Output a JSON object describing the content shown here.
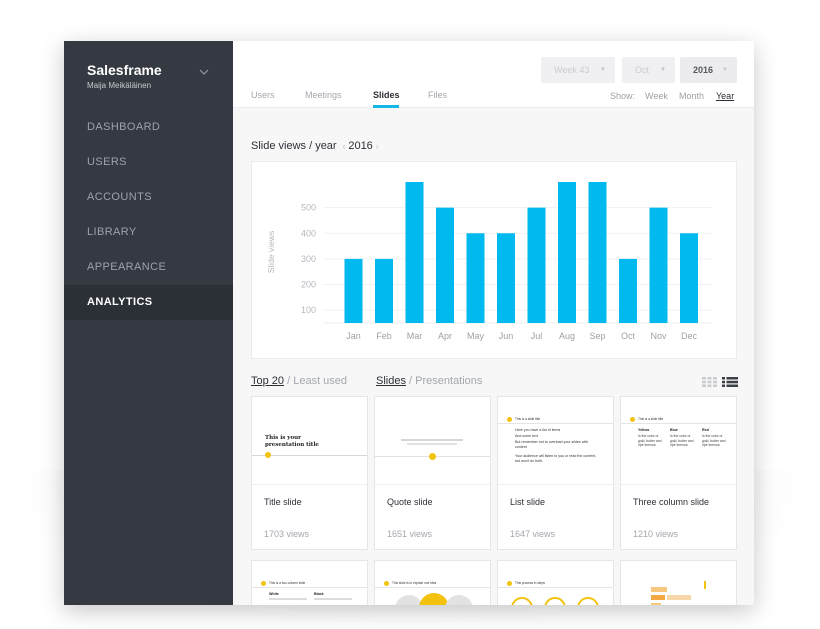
{
  "app": {
    "brand": "Salesframe",
    "user": "Maija Meikäläinen"
  },
  "sidebar": {
    "items": [
      {
        "label": "DASHBOARD",
        "active": false
      },
      {
        "label": "USERS",
        "active": false
      },
      {
        "label": "ACCOUNTS",
        "active": false
      },
      {
        "label": "LIBRARY",
        "active": false
      },
      {
        "label": "APPEARANCE",
        "active": false
      },
      {
        "label": "ANALYTICS",
        "active": true
      }
    ]
  },
  "filters": {
    "week": "Week 43",
    "month": "Oct",
    "year": "2016"
  },
  "tabs": [
    {
      "label": "Users",
      "active": false
    },
    {
      "label": "Meetings",
      "active": false
    },
    {
      "label": "Slides",
      "active": true
    },
    {
      "label": "Files",
      "active": false
    }
  ],
  "show": {
    "label": "Show:",
    "options": [
      {
        "label": "Week",
        "active": false
      },
      {
        "label": "Month",
        "active": false
      },
      {
        "label": "Year",
        "active": true
      }
    ]
  },
  "chart_section": {
    "title": "Slide views / year",
    "prev": "‹",
    "year": "2016",
    "next": "›"
  },
  "chart_data": {
    "type": "bar",
    "categories": [
      "Jan",
      "Feb",
      "Mar",
      "Apr",
      "May",
      "Jun",
      "Jul",
      "Aug",
      "Sep",
      "Oct",
      "Nov",
      "Dec"
    ],
    "values": [
      300,
      300,
      600,
      500,
      400,
      400,
      500,
      600,
      600,
      300,
      500,
      400
    ],
    "ylabel": "Slide views",
    "yticks": [
      100,
      200,
      300,
      400,
      500
    ],
    "ylim": [
      50,
      600
    ],
    "grid": true,
    "color": "#00b9ee"
  },
  "lists": {
    "top_label": "Top 20",
    "sep": "/",
    "least_label": "Least used",
    "slides_label": "Slides",
    "presentations_label": "Presentations"
  },
  "cards": [
    {
      "title": "Title slide",
      "views": "1703 views"
    },
    {
      "title": "Quote slide",
      "views": "1651 views"
    },
    {
      "title": "List slide",
      "views": "1647 views"
    },
    {
      "title": "Three column slide",
      "views": "1210 views"
    }
  ],
  "thumbs": {
    "title_slide_text": "This is your presentation title",
    "list_slide_header": "This is a slide title",
    "list_slide_items": [
      "Here you have a list of items",
      "And some text",
      "But remember not to overload your slides with content"
    ],
    "list_slide_footer": "Your audience will listen to you or read the content, but won't do both.",
    "three_col_header": "This is a slide title",
    "three_col_heads": [
      "Yellow",
      "Blue",
      "Red"
    ],
    "three_col_body": "Is the color of gold, butter and ripe lemons.",
    "row2_headers": [
      "This is a two column slide",
      "This slide is to explain one idea",
      "This process in steps"
    ],
    "row2_cols": [
      "White",
      "Black"
    ]
  },
  "colors": {
    "accent": "#16b7e6",
    "bar": "#00b9ee",
    "sidebar": "#353a42",
    "sidebar_active": "#2b2f36",
    "thumb_accent": "#f3c20f"
  }
}
